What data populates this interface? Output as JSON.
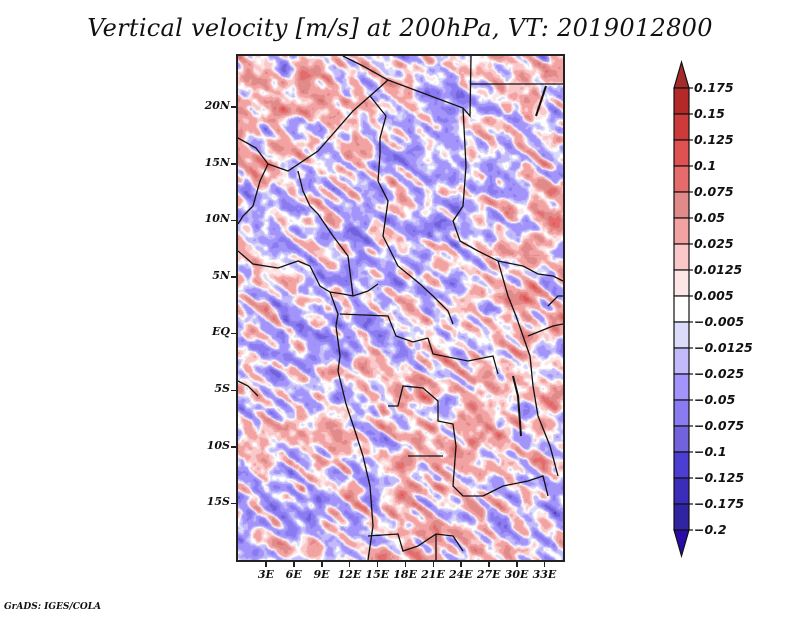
{
  "title": "Vertical velocity [m/s] at 200hPa, VT: 2019012800",
  "credit": "GrADS: IGES/COLA",
  "map": {
    "variable": "Vertical velocity",
    "units": "m/s",
    "level": "200hPa",
    "valid_time": "2019012800",
    "lon_range": [
      0,
      35
    ],
    "lat_range": [
      -20,
      24.5
    ],
    "lat_ticks": [
      {
        "value": 20,
        "label": "20N"
      },
      {
        "value": 15,
        "label": "15N"
      },
      {
        "value": 10,
        "label": "10N"
      },
      {
        "value": 5,
        "label": "5N"
      },
      {
        "value": 0,
        "label": "EQ"
      },
      {
        "value": -5,
        "label": "5S"
      },
      {
        "value": -10,
        "label": "10S"
      },
      {
        "value": -15,
        "label": "15S"
      }
    ],
    "lon_ticks": [
      {
        "value": 3,
        "label": "3E"
      },
      {
        "value": 6,
        "label": "6E"
      },
      {
        "value": 9,
        "label": "9E"
      },
      {
        "value": 12,
        "label": "12E"
      },
      {
        "value": 15,
        "label": "15E"
      },
      {
        "value": 18,
        "label": "18E"
      },
      {
        "value": 21,
        "label": "21E"
      },
      {
        "value": 24,
        "label": "24E"
      },
      {
        "value": 27,
        "label": "27E"
      },
      {
        "value": 30,
        "label": "30E"
      },
      {
        "value": 33,
        "label": "33E"
      }
    ]
  },
  "colorbar": {
    "levels": [
      0.175,
      0.15,
      0.125,
      0.1,
      0.075,
      0.05,
      0.025,
      0.0125,
      0.005,
      -0.005,
      -0.0125,
      -0.025,
      -0.05,
      -0.075,
      -0.1,
      -0.125,
      -0.175,
      -0.2
    ],
    "labels": [
      "0.175",
      "0.15",
      "0.125",
      "0.1",
      "0.075",
      "0.05",
      "0.025",
      "0.0125",
      "0.005",
      "−0.005",
      "−0.0125",
      "−0.025",
      "−0.05",
      "−0.075",
      "−0.1",
      "−0.125",
      "−0.175",
      "−0.2"
    ],
    "colors": [
      "#a52a2a",
      "#b42828",
      "#cc3a3a",
      "#e05252",
      "#e66c6c",
      "#e08a8a",
      "#f3a2a2",
      "#fac8c8",
      "#fde6e6",
      "#ffffff",
      "#dcdcfa",
      "#c2bafa",
      "#a294fa",
      "#8a7cf0",
      "#7262dc",
      "#4c3ed2",
      "#3c2cba",
      "#3024a2",
      "#2a0aa8"
    ]
  }
}
